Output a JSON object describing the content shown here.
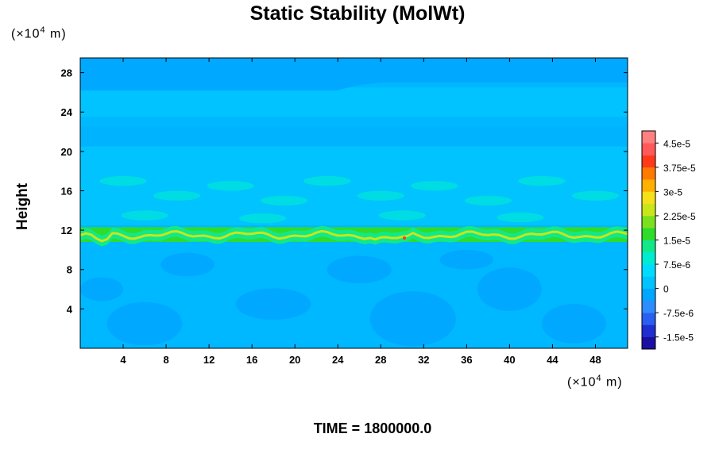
{
  "chart_data": {
    "type": "heatmap",
    "title": "Static Stability (MolWt)",
    "ylabel": "Height",
    "xlabel": "",
    "y_unit_base": "(×10",
    "y_unit_exp": "4",
    "y_unit_tail": " m)",
    "x_unit_base": "(×10",
    "x_unit_exp": "4",
    "x_unit_tail": " m)",
    "x_ticks": [
      4,
      8,
      12,
      16,
      20,
      24,
      28,
      32,
      36,
      40,
      44,
      48
    ],
    "y_ticks": [
      4,
      8,
      12,
      16,
      20,
      24,
      28
    ],
    "xlim": [
      0,
      51
    ],
    "ylim": [
      0,
      29.5
    ],
    "colorbar": {
      "labels": [
        "4.5e-5",
        "3.75e-5",
        "3e-5",
        "2.25e-5",
        "1.5e-5",
        "7.5e-6",
        "0",
        "-7.5e-6",
        "-1.5e-5"
      ],
      "label_values": [
        4.5e-05,
        3.75e-05,
        3e-05,
        2.25e-05,
        1.5e-05,
        7.5e-06,
        0,
        -7.5e-06,
        -1.5e-05
      ],
      "range": [
        -1.875e-05,
        4.875e-05
      ],
      "colors": [
        "#1a0fa0",
        "#1f2fd0",
        "#2a5ff0",
        "#2e8cff",
        "#00a6ff",
        "#00c3ff",
        "#00dcff",
        "#00ecd0",
        "#12e88a",
        "#2edc2a",
        "#7be01e",
        "#c8e61a",
        "#f5e01a",
        "#ffb000",
        "#ff7a00",
        "#ff3a1a",
        "#ff5a5a",
        "#ff8080"
      ]
    },
    "field_levels": [
      {
        "range": [
          27.0,
          29.5
        ],
        "color": "#00a9ff"
      },
      {
        "range": [
          23.5,
          26.5
        ],
        "color": "#00c3ff"
      },
      {
        "range": [
          20.5,
          22.5
        ],
        "color": "#00b3ff"
      },
      {
        "range": [
          12.5,
          20.5
        ],
        "color": "#00c3ff"
      },
      {
        "range": [
          10.8,
          12.3
        ],
        "color": "#2edc2a"
      },
      {
        "range": [
          0,
          10.8
        ],
        "color": "#00b8ff"
      }
    ],
    "tropopause_height": 11.5
  },
  "footer": {
    "time_label": "TIME = 1800000.0"
  }
}
